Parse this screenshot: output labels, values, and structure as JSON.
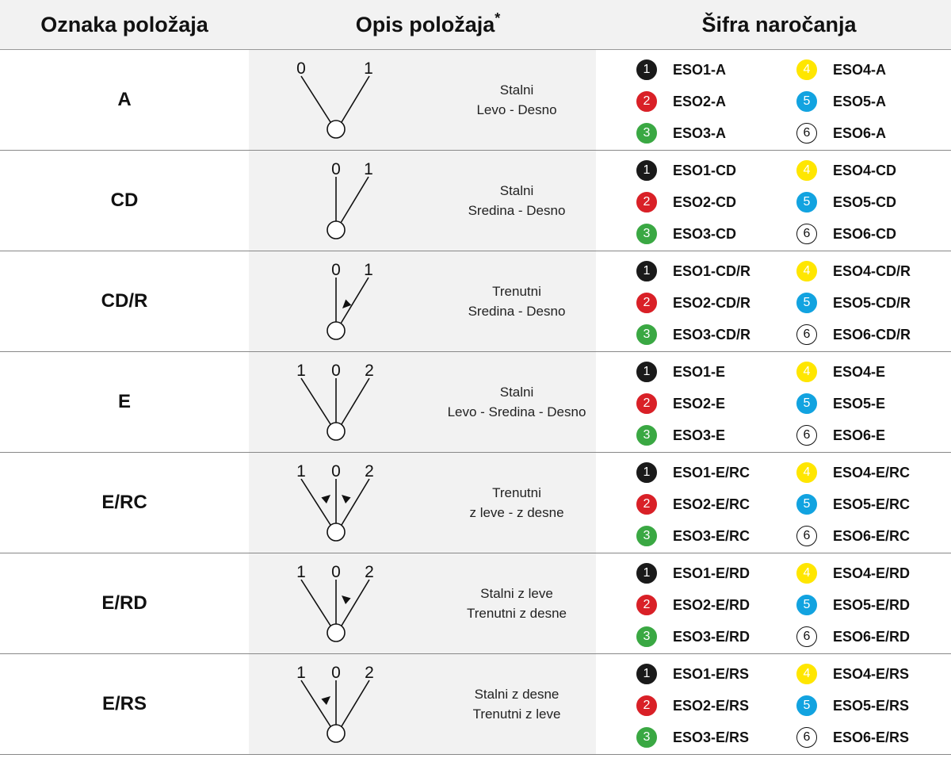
{
  "header": {
    "col1": "Oznaka položaja",
    "col2": "Opis položaja",
    "col2_star": "*",
    "col3": "Šifra naročanja"
  },
  "badge_colors": {
    "1": {
      "bg": "#1a1a1a",
      "fg": "#ffffff",
      "border": "#1a1a1a"
    },
    "2": {
      "bg": "#d92027",
      "fg": "#ffffff",
      "border": "#d92027"
    },
    "3": {
      "bg": "#3aa843",
      "fg": "#ffffff",
      "border": "#3aa843"
    },
    "4": {
      "bg": "#ffe600",
      "fg": "#ffffff",
      "border": "#ffe600"
    },
    "5": {
      "bg": "#12a3e0",
      "fg": "#ffffff",
      "border": "#12a3e0"
    },
    "6": {
      "bg": "#ffffff",
      "fg": "#111111",
      "border": "#111111"
    }
  },
  "rows": [
    {
      "code": "A",
      "diagram": "A",
      "labels": [
        "0",
        "1"
      ],
      "desc1": "Stalni",
      "desc2": "Levo - Desno",
      "orders": [
        {
          "num": "1",
          "code": "ESO1-A"
        },
        {
          "num": "2",
          "code": "ESO2-A"
        },
        {
          "num": "3",
          "code": "ESO3-A"
        },
        {
          "num": "4",
          "code": "ESO4-A"
        },
        {
          "num": "5",
          "code": "ESO5-A"
        },
        {
          "num": "6",
          "code": "ESO6-A"
        }
      ]
    },
    {
      "code": "CD",
      "diagram": "CD",
      "labels": [
        "0",
        "1"
      ],
      "desc1": "Stalni",
      "desc2": "Sredina - Desno",
      "orders": [
        {
          "num": "1",
          "code": "ESO1-CD"
        },
        {
          "num": "2",
          "code": "ESO2-CD"
        },
        {
          "num": "3",
          "code": "ESO3-CD"
        },
        {
          "num": "4",
          "code": "ESO4-CD"
        },
        {
          "num": "5",
          "code": "ESO5-CD"
        },
        {
          "num": "6",
          "code": "ESO6-CD"
        }
      ]
    },
    {
      "code": "CD/R",
      "diagram": "CDR",
      "labels": [
        "0",
        "1"
      ],
      "desc1": "Trenutni",
      "desc2": "Sredina - Desno",
      "orders": [
        {
          "num": "1",
          "code": "ESO1-CD/R"
        },
        {
          "num": "2",
          "code": "ESO2-CD/R"
        },
        {
          "num": "3",
          "code": "ESO3-CD/R"
        },
        {
          "num": "4",
          "code": "ESO4-CD/R"
        },
        {
          "num": "5",
          "code": "ESO5-CD/R"
        },
        {
          "num": "6",
          "code": "ESO6-CD/R"
        }
      ]
    },
    {
      "code": "E",
      "diagram": "E",
      "labels": [
        "1",
        "0",
        "2"
      ],
      "desc1": "Stalni",
      "desc2": "Levo - Sredina - Desno",
      "orders": [
        {
          "num": "1",
          "code": "ESO1-E"
        },
        {
          "num": "2",
          "code": "ESO2-E"
        },
        {
          "num": "3",
          "code": "ESO3-E"
        },
        {
          "num": "4",
          "code": "ESO4-E"
        },
        {
          "num": "5",
          "code": "ESO5-E"
        },
        {
          "num": "6",
          "code": "ESO6-E"
        }
      ]
    },
    {
      "code": "E/RC",
      "diagram": "ERC",
      "labels": [
        "1",
        "0",
        "2"
      ],
      "desc1": "Trenutni",
      "desc2": "z leve - z desne",
      "orders": [
        {
          "num": "1",
          "code": "ESO1-E/RC"
        },
        {
          "num": "2",
          "code": "ESO2-E/RC"
        },
        {
          "num": "3",
          "code": "ESO3-E/RC"
        },
        {
          "num": "4",
          "code": "ESO4-E/RC"
        },
        {
          "num": "5",
          "code": "ESO5-E/RC"
        },
        {
          "num": "6",
          "code": "ESO6-E/RC"
        }
      ]
    },
    {
      "code": "E/RD",
      "diagram": "ERD",
      "labels": [
        "1",
        "0",
        "2"
      ],
      "desc1": "Stalni z leve",
      "desc2": "Trenutni z desne",
      "orders": [
        {
          "num": "1",
          "code": "ESO1-E/RD"
        },
        {
          "num": "2",
          "code": "ESO2-E/RD"
        },
        {
          "num": "3",
          "code": "ESO3-E/RD"
        },
        {
          "num": "4",
          "code": "ESO4-E/RD"
        },
        {
          "num": "5",
          "code": "ESO5-E/RD"
        },
        {
          "num": "6",
          "code": "ESO6-E/RD"
        }
      ]
    },
    {
      "code": "E/RS",
      "diagram": "ERS",
      "labels": [
        "1",
        "0",
        "2"
      ],
      "desc1": "Stalni z desne",
      "desc2": "Trenutni z leve",
      "orders": [
        {
          "num": "1",
          "code": "ESO1-E/RS"
        },
        {
          "num": "2",
          "code": "ESO2-E/RS"
        },
        {
          "num": "3",
          "code": "ESO3-E/RS"
        },
        {
          "num": "4",
          "code": "ESO4-E/RS"
        },
        {
          "num": "5",
          "code": "ESO5-E/RS"
        },
        {
          "num": "6",
          "code": "ESO6-E/RS"
        }
      ]
    }
  ]
}
